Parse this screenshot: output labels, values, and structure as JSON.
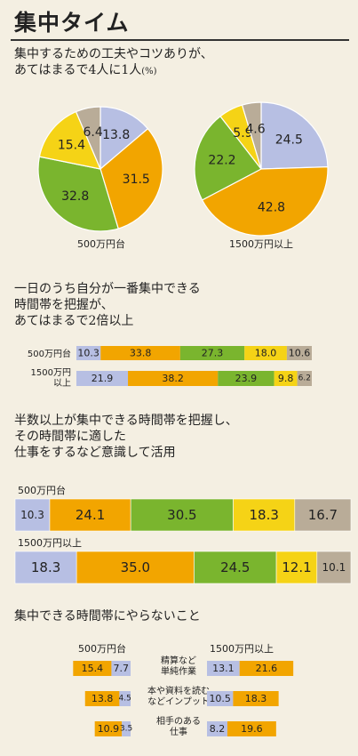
{
  "header": {
    "title": "集中タイム"
  },
  "colors": {
    "c1": "#b7bfe3",
    "c2": "#f2a500",
    "c3": "#7ab52e",
    "c4": "#f5d316",
    "c5": "#b9ac98"
  },
  "chart_data": [
    {
      "type": "pie",
      "title_lines": [
        "集中するための工夫やコツありが、",
        "あてはまるで4人に1人"
      ],
      "unit": "(%)",
      "pies": [
        {
          "label": "500万円台",
          "values": [
            13.8,
            31.5,
            32.8,
            15.4,
            6.4
          ]
        },
        {
          "label": "1500万円以上",
          "values": [
            24.5,
            42.8,
            22.2,
            5.9,
            4.6
          ]
        }
      ]
    },
    {
      "type": "bar",
      "orientation": "horizontal-stacked",
      "title_lines": [
        "一日のうち自分が一番集中できる",
        "時間帯を把握が、",
        "あてはまるで2倍以上"
      ],
      "rows": [
        {
          "label_lines": [
            "500万円台"
          ],
          "values": [
            10.3,
            33.8,
            27.3,
            18.0,
            10.6
          ]
        },
        {
          "label_lines": [
            "1500万円",
            "以上"
          ],
          "values": [
            21.9,
            38.2,
            23.9,
            9.8,
            6.2
          ]
        }
      ]
    },
    {
      "type": "bar",
      "orientation": "horizontal-stacked",
      "title_lines": [
        "半数以上が集中できる時間帯を把握し、",
        "その時間帯に適した",
        "仕事をするなど意識して活用"
      ],
      "rows": [
        {
          "label": "500万円台",
          "values": [
            10.3,
            24.1,
            30.5,
            18.3,
            16.7
          ]
        },
        {
          "label": "1500万円以上",
          "values": [
            18.3,
            35.0,
            24.5,
            12.1,
            10.1
          ]
        }
      ]
    },
    {
      "type": "bar",
      "orientation": "horizontal-paired",
      "title": "集中できる時間帯にやらないこと",
      "left_header": "500万円台",
      "right_header": "1500万円以上",
      "rows": [
        {
          "label_lines": [
            "精算など",
            "単純作業"
          ],
          "left": [
            15.4,
            7.7
          ],
          "right": [
            13.1,
            21.6
          ]
        },
        {
          "label_lines": [
            "本や資料を読む",
            "などインプット"
          ],
          "left": [
            13.8,
            4.5
          ],
          "right": [
            10.5,
            18.3
          ]
        },
        {
          "label_lines": [
            "相手のある",
            "仕事"
          ],
          "left": [
            10.9,
            3.5
          ],
          "right": [
            8.2,
            19.6
          ]
        }
      ]
    }
  ]
}
